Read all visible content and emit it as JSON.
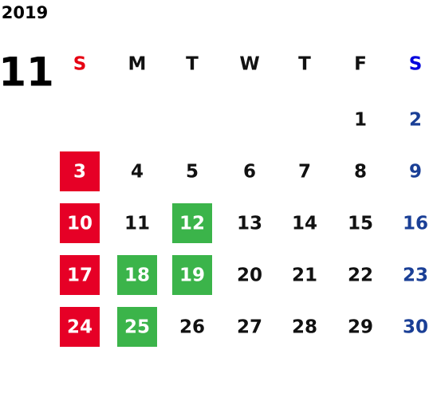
{
  "calendar": {
    "year": "2019",
    "month": "11",
    "weekdays": [
      "S",
      "M",
      "T",
      "W",
      "T",
      "F",
      "S"
    ],
    "weekday_colors": [
      "#e60012",
      "#111111",
      "#111111",
      "#111111",
      "#111111",
      "#111111",
      "#0000dd"
    ],
    "day_colors": [
      "#e60012",
      "#111111",
      "#111111",
      "#111111",
      "#111111",
      "#111111",
      "#1a3f96"
    ],
    "weeks": [
      [
        null,
        null,
        null,
        null,
        null,
        1,
        2
      ],
      [
        3,
        4,
        5,
        6,
        7,
        8,
        9
      ],
      [
        10,
        11,
        12,
        13,
        14,
        15,
        16
      ],
      [
        17,
        18,
        19,
        20,
        21,
        22,
        23
      ],
      [
        24,
        25,
        26,
        27,
        28,
        29,
        30
      ]
    ],
    "highlights": [
      {
        "day": 3,
        "color": "#e60026"
      },
      {
        "day": 10,
        "color": "#e60026"
      },
      {
        "day": 17,
        "color": "#e60026"
      },
      {
        "day": 24,
        "color": "#e60026"
      },
      {
        "day": 12,
        "color": "#3bb44a"
      },
      {
        "day": 18,
        "color": "#3bb44a"
      },
      {
        "day": 19,
        "color": "#3bb44a"
      },
      {
        "day": 25,
        "color": "#3bb44a"
      }
    ]
  }
}
